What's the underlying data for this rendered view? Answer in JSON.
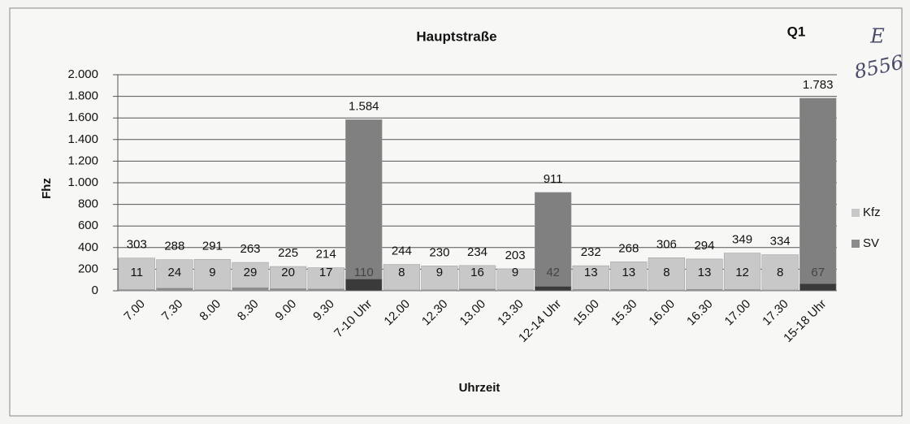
{
  "chart_data": {
    "type": "bar",
    "title": "Hauptstraße",
    "annotations": [
      "Q1",
      "E",
      "8556"
    ],
    "x_label": "Uhrzeit",
    "y_label": "Fhz",
    "categories": [
      "7.00",
      "7.30",
      "8.00",
      "8.30",
      "9.00",
      "9.30",
      "7-10 Uhr",
      "12.00",
      "12.30",
      "13.00",
      "13.30",
      "12-14 Uhr",
      "15.00",
      "15.30",
      "16.00",
      "16.30",
      "17.00",
      "17.30",
      "15-18 Uhr"
    ],
    "series": [
      {
        "name": "Kfz",
        "color": "#c8c8c8",
        "colors": [
          "#c8c8c8",
          "#c8c8c8",
          "#c8c8c8",
          "#c8c8c8",
          "#c8c8c8",
          "#c8c8c8",
          "#808080",
          "#c8c8c8",
          "#c8c8c8",
          "#c8c8c8",
          "#c8c8c8",
          "#808080",
          "#c8c8c8",
          "#c8c8c8",
          "#c8c8c8",
          "#c8c8c8",
          "#c8c8c8",
          "#c8c8c8",
          "#808080"
        ],
        "values": [
          303,
          288,
          291,
          263,
          225,
          214,
          1584,
          244,
          230,
          234,
          203,
          911,
          232,
          268,
          306,
          294,
          349,
          334,
          1783
        ],
        "value_labels": [
          "303",
          "288",
          "291",
          "263",
          "225",
          "214",
          "1.584",
          "244",
          "230",
          "234",
          "203",
          "911",
          "232",
          "268",
          "306",
          "294",
          "349",
          "334",
          "1.783"
        ]
      },
      {
        "name": "SV",
        "color": "#8c8c8c",
        "colors": [
          "#8c8c8c",
          "#8c8c8c",
          "#8c8c8c",
          "#8c8c8c",
          "#8c8c8c",
          "#8c8c8c",
          "#3a3a3a",
          "#8c8c8c",
          "#8c8c8c",
          "#8c8c8c",
          "#8c8c8c",
          "#3a3a3a",
          "#8c8c8c",
          "#8c8c8c",
          "#8c8c8c",
          "#8c8c8c",
          "#8c8c8c",
          "#8c8c8c",
          "#3a3a3a"
        ],
        "values": [
          11,
          24,
          9,
          29,
          20,
          17,
          110,
          8,
          9,
          16,
          9,
          42,
          13,
          13,
          8,
          13,
          12,
          8,
          67
        ]
      }
    ],
    "ylim": [
      0,
      2000
    ],
    "yticks": [
      0,
      200,
      400,
      600,
      800,
      {
        "value": 1000,
        "label": "1.000"
      },
      {
        "value": 1200,
        "label": "1.200"
      },
      {
        "value": 1400,
        "label": "1.400"
      },
      {
        "value": 1600,
        "label": "1.600"
      },
      {
        "value": 1800,
        "label": "1.800"
      },
      {
        "value": 2000,
        "label": "2.000"
      }
    ],
    "grid": true,
    "legend": "right"
  }
}
